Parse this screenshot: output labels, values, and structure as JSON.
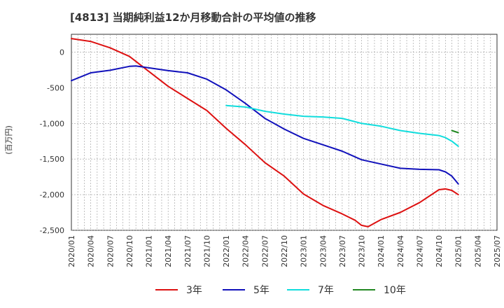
{
  "chart_data": {
    "type": "line",
    "title": "[4813]  当期純利益12か月移動合計の平均値の推移",
    "ylabel": "(百万円)",
    "ylim": [
      -2500,
      250
    ],
    "yticks": [
      0,
      -500,
      -1000,
      -1500,
      -2000,
      -2500
    ],
    "ytick_labels": [
      "0",
      "-500",
      "-1,000",
      "-1,500",
      "-2,000",
      "-2,500"
    ],
    "xlim": [
      "2020-01",
      "2025-07"
    ],
    "xtick_labels": [
      "2020/01",
      "2020/04",
      "2020/07",
      "2020/10",
      "2021/01",
      "2021/04",
      "2021/07",
      "2021/10",
      "2022/01",
      "2022/04",
      "2022/07",
      "2022/10",
      "2023/01",
      "2023/04",
      "2023/07",
      "2023/10",
      "2024/01",
      "2024/04",
      "2024/07",
      "2024/10",
      "2025/01",
      "2025/04",
      "2025/07"
    ],
    "grid": true,
    "legend_position": "bottom",
    "series": [
      {
        "name": "3年",
        "color": "#dd1111",
        "x": [
          "2020-01",
          "2020-04",
          "2020-07",
          "2020-10",
          "2021-01",
          "2021-04",
          "2021-07",
          "2021-10",
          "2022-01",
          "2022-04",
          "2022-07",
          "2022-10",
          "2023-01",
          "2023-04",
          "2023-07",
          "2023-09",
          "2023-10",
          "2023-11",
          "2024-01",
          "2024-04",
          "2024-07",
          "2024-10",
          "2024-11",
          "2024-12",
          "2025-01"
        ],
        "y": [
          190,
          150,
          60,
          -60,
          -270,
          -480,
          -650,
          -820,
          -1070,
          -1300,
          -1550,
          -1740,
          -1990,
          -2150,
          -2270,
          -2360,
          -2430,
          -2450,
          -2350,
          -2250,
          -2110,
          -1930,
          -1920,
          -1940,
          -2000
        ]
      },
      {
        "name": "5年",
        "color": "#1111bb",
        "x": [
          "2020-01",
          "2020-04",
          "2020-07",
          "2020-10",
          "2020-11",
          "2021-01",
          "2021-04",
          "2021-07",
          "2021-10",
          "2022-01",
          "2022-04",
          "2022-07",
          "2022-10",
          "2023-01",
          "2023-04",
          "2023-07",
          "2023-10",
          "2024-01",
          "2024-04",
          "2024-07",
          "2024-10",
          "2024-11",
          "2024-12",
          "2025-01"
        ],
        "y": [
          -400,
          -290,
          -255,
          -200,
          -195,
          -220,
          -260,
          -290,
          -380,
          -530,
          -720,
          -930,
          -1080,
          -1210,
          -1300,
          -1390,
          -1510,
          -1570,
          -1630,
          -1645,
          -1650,
          -1680,
          -1740,
          -1850
        ]
      },
      {
        "name": "7年",
        "color": "#11dddd",
        "x": [
          "2022-01",
          "2022-04",
          "2022-07",
          "2022-10",
          "2023-01",
          "2023-04",
          "2023-07",
          "2023-10",
          "2024-01",
          "2024-04",
          "2024-07",
          "2024-10",
          "2024-11",
          "2024-12",
          "2025-01"
        ],
        "y": [
          -750,
          -770,
          -830,
          -870,
          -900,
          -910,
          -930,
          -1000,
          -1040,
          -1100,
          -1140,
          -1170,
          -1200,
          -1250,
          -1320
        ]
      },
      {
        "name": "10年",
        "color": "#228822",
        "x": [
          "2024-12",
          "2025-01"
        ],
        "y": [
          -1100,
          -1130
        ]
      }
    ]
  }
}
